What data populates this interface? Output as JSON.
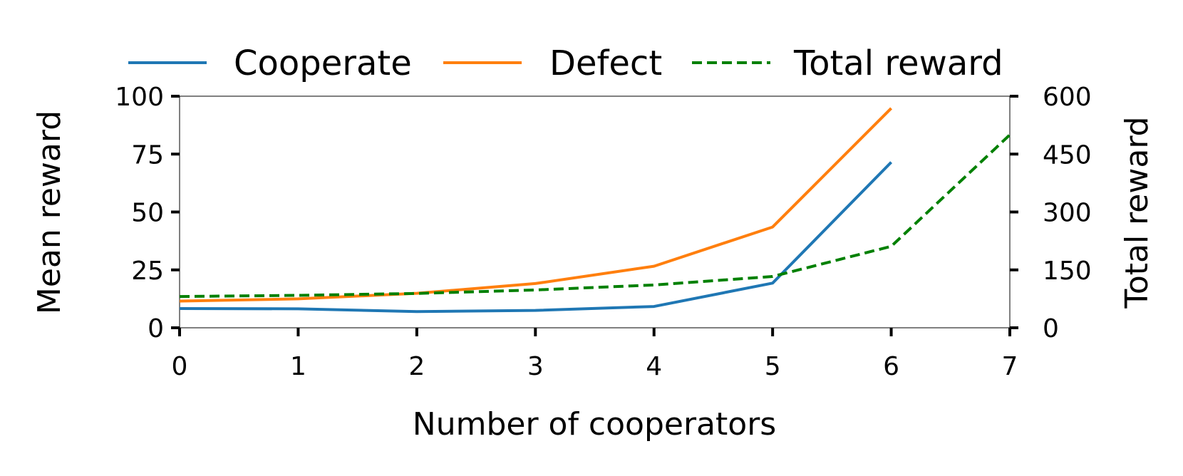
{
  "chart_data": {
    "type": "line",
    "xlabel": "Number of cooperators",
    "ylabel": "Mean reward",
    "y2label": "Total reward",
    "xlim": [
      0,
      7
    ],
    "ylim": [
      0,
      100
    ],
    "y2lim": [
      0,
      600
    ],
    "x_ticks": [
      "0",
      "1",
      "2",
      "3",
      "4",
      "5",
      "6",
      "7"
    ],
    "y_ticks": [
      "0",
      "25",
      "50",
      "75",
      "100"
    ],
    "y2_ticks": [
      "0",
      "150",
      "300",
      "450",
      "600"
    ],
    "grid": false,
    "legend_position": "top",
    "series": [
      {
        "name": "Cooperate",
        "axis": "left",
        "color": "#1f77b4",
        "style": "solid",
        "x": [
          0,
          1,
          2,
          3,
          4,
          5,
          6
        ],
        "values": [
          8.3,
          8.2,
          7.0,
          7.5,
          9.2,
          19.3,
          71.5
        ]
      },
      {
        "name": "Defect",
        "axis": "left",
        "color": "#ff7f0e",
        "style": "solid",
        "x": [
          0,
          1,
          2,
          3,
          4,
          5,
          6
        ],
        "values": [
          11.5,
          12.5,
          14.9,
          19.1,
          26.6,
          43.5,
          94.8
        ]
      },
      {
        "name": "Total reward",
        "axis": "right",
        "color": "#008000",
        "style": "dashed",
        "x": [
          0,
          1,
          2,
          3,
          4,
          5,
          6,
          7
        ],
        "values": [
          81,
          84,
          89,
          98,
          111,
          133,
          211,
          500
        ]
      }
    ]
  }
}
